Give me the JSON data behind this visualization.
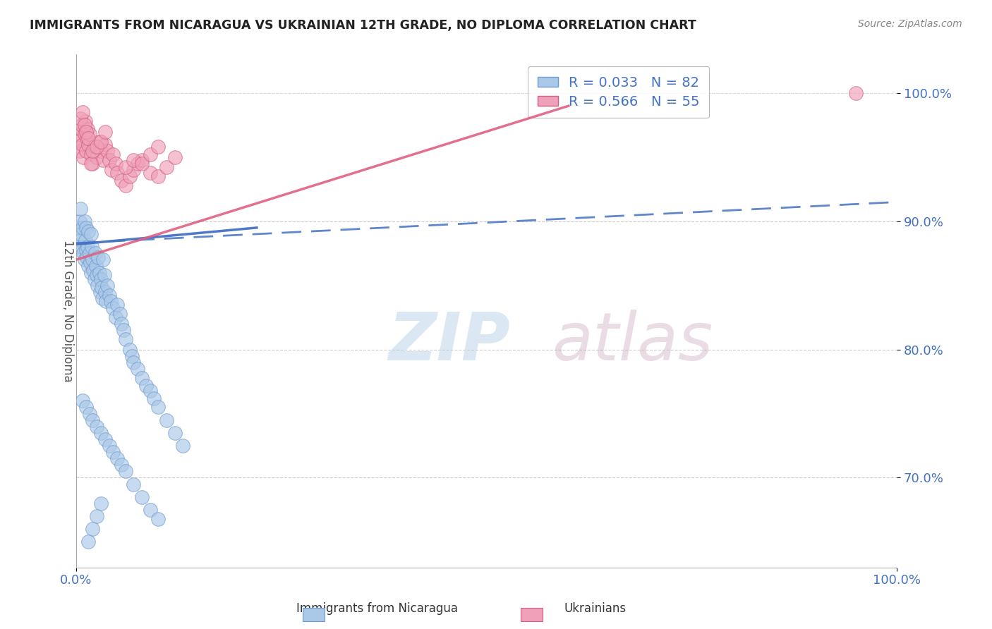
{
  "title": "IMMIGRANTS FROM NICARAGUA VS UKRAINIAN 12TH GRADE, NO DIPLOMA CORRELATION CHART",
  "source": "Source: ZipAtlas.com",
  "ylabel": "12th Grade, No Diploma",
  "legend_label1": "Immigrants from Nicaragua",
  "legend_label2": "Ukrainians",
  "legend_R1": "R = 0.033",
  "legend_N1": "N = 82",
  "legend_R2": "R = 0.566",
  "legend_N2": "N = 55",
  "color_blue": "#aac8e8",
  "color_pink": "#f0a0b8",
  "color_blue_edge": "#7099cc",
  "color_pink_edge": "#d06080",
  "color_blue_line": "#4472c4",
  "color_pink_line": "#e06080",
  "xlim": [
    0.0,
    1.0
  ],
  "ylim": [
    0.63,
    1.03
  ],
  "blue_x": [
    0.002,
    0.003,
    0.004,
    0.005,
    0.005,
    0.006,
    0.007,
    0.008,
    0.009,
    0.01,
    0.01,
    0.011,
    0.012,
    0.012,
    0.013,
    0.014,
    0.015,
    0.015,
    0.016,
    0.017,
    0.018,
    0.018,
    0.019,
    0.02,
    0.021,
    0.022,
    0.023,
    0.024,
    0.025,
    0.026,
    0.027,
    0.028,
    0.029,
    0.03,
    0.031,
    0.032,
    0.033,
    0.034,
    0.035,
    0.036,
    0.038,
    0.04,
    0.042,
    0.045,
    0.048,
    0.05,
    0.053,
    0.055,
    0.058,
    0.06,
    0.065,
    0.068,
    0.07,
    0.075,
    0.08,
    0.085,
    0.09,
    0.095,
    0.1,
    0.11,
    0.12,
    0.13,
    0.008,
    0.012,
    0.016,
    0.02,
    0.025,
    0.03,
    0.035,
    0.04,
    0.045,
    0.05,
    0.055,
    0.06,
    0.07,
    0.08,
    0.09,
    0.1,
    0.03,
    0.025,
    0.02,
    0.015
  ],
  "blue_y": [
    0.88,
    0.895,
    0.9,
    0.885,
    0.91,
    0.89,
    0.88,
    0.895,
    0.875,
    0.9,
    0.87,
    0.885,
    0.878,
    0.895,
    0.872,
    0.88,
    0.865,
    0.892,
    0.875,
    0.868,
    0.86,
    0.89,
    0.88,
    0.87,
    0.862,
    0.855,
    0.875,
    0.865,
    0.858,
    0.85,
    0.872,
    0.86,
    0.845,
    0.855,
    0.848,
    0.84,
    0.87,
    0.858,
    0.845,
    0.838,
    0.85,
    0.842,
    0.838,
    0.832,
    0.825,
    0.835,
    0.828,
    0.82,
    0.815,
    0.808,
    0.8,
    0.795,
    0.79,
    0.785,
    0.778,
    0.772,
    0.768,
    0.762,
    0.755,
    0.745,
    0.735,
    0.725,
    0.76,
    0.755,
    0.75,
    0.745,
    0.74,
    0.735,
    0.73,
    0.725,
    0.72,
    0.715,
    0.71,
    0.705,
    0.695,
    0.685,
    0.675,
    0.668,
    0.68,
    0.67,
    0.66,
    0.65
  ],
  "pink_x": [
    0.002,
    0.003,
    0.004,
    0.005,
    0.006,
    0.007,
    0.008,
    0.009,
    0.01,
    0.011,
    0.012,
    0.013,
    0.014,
    0.015,
    0.016,
    0.018,
    0.02,
    0.022,
    0.025,
    0.028,
    0.03,
    0.033,
    0.035,
    0.038,
    0.04,
    0.043,
    0.045,
    0.048,
    0.05,
    0.055,
    0.06,
    0.065,
    0.07,
    0.075,
    0.08,
    0.09,
    0.1,
    0.11,
    0.12,
    0.005,
    0.008,
    0.01,
    0.012,
    0.015,
    0.018,
    0.02,
    0.025,
    0.03,
    0.035,
    0.06,
    0.07,
    0.08,
    0.09,
    0.1,
    0.95
  ],
  "pink_y": [
    0.958,
    0.968,
    0.955,
    0.963,
    0.972,
    0.975,
    0.96,
    0.95,
    0.968,
    0.978,
    0.955,
    0.965,
    0.972,
    0.96,
    0.968,
    0.952,
    0.945,
    0.958,
    0.95,
    0.962,
    0.955,
    0.948,
    0.96,
    0.955,
    0.948,
    0.94,
    0.952,
    0.945,
    0.938,
    0.932,
    0.928,
    0.935,
    0.94,
    0.945,
    0.948,
    0.938,
    0.935,
    0.942,
    0.95,
    0.98,
    0.985,
    0.975,
    0.97,
    0.965,
    0.945,
    0.955,
    0.958,
    0.962,
    0.97,
    0.942,
    0.948,
    0.945,
    0.952,
    0.958,
    1.0
  ]
}
